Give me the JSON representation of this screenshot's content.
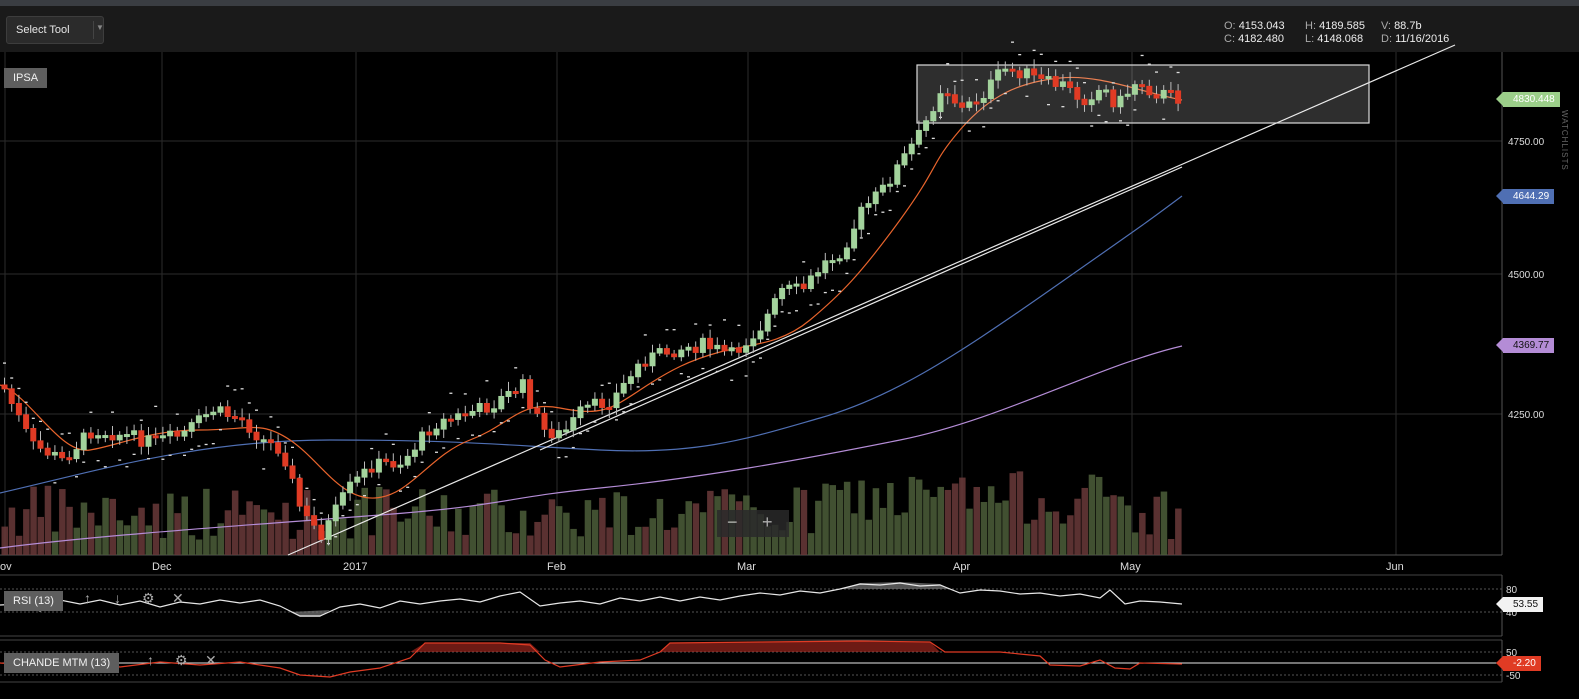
{
  "toolbar": {
    "select_tool_label": "Select Tool",
    "dropdown_icon": "triangle-down"
  },
  "ohlc": {
    "open_label": "O:",
    "open": "4153.043",
    "close_label": "C:",
    "close": "4182.480",
    "high_label": "H:",
    "high": "4189.585",
    "low_label": "L:",
    "low": "4148.068",
    "volume_label": "V:",
    "volume": "88.7b",
    "date_label": "D:",
    "date": "11/16/2016"
  },
  "main_pane": {
    "symbol": "IPSA",
    "price_axis": [
      "4750.00",
      "4500.00",
      "4250.00"
    ],
    "time_axis": [
      "ov",
      "Dec",
      "2017",
      "Feb",
      "Mar",
      "Apr",
      "May",
      "Jun"
    ],
    "tags": {
      "last": "4830.448",
      "ma_mid": "4644.29",
      "ma_long": "4369.77"
    }
  },
  "rsi_pane": {
    "label": "RSI (13)",
    "levels": [
      "80",
      "40"
    ],
    "value": "53.55"
  },
  "chande_pane": {
    "label": "CHANDE MTM (13)",
    "levels": [
      "50",
      "-50"
    ],
    "value": "-2.20"
  },
  "zoom": {
    "minus": "−",
    "plus": "+"
  },
  "side_tab": "WATCHLISTS",
  "colors": {
    "up": "#a3d39c",
    "down": "#e03b24",
    "ma_short": "#e8642c",
    "ma_mid": "#4f6fb3",
    "ma_long": "#b48cd6",
    "trend": "#e8e8e8"
  }
}
